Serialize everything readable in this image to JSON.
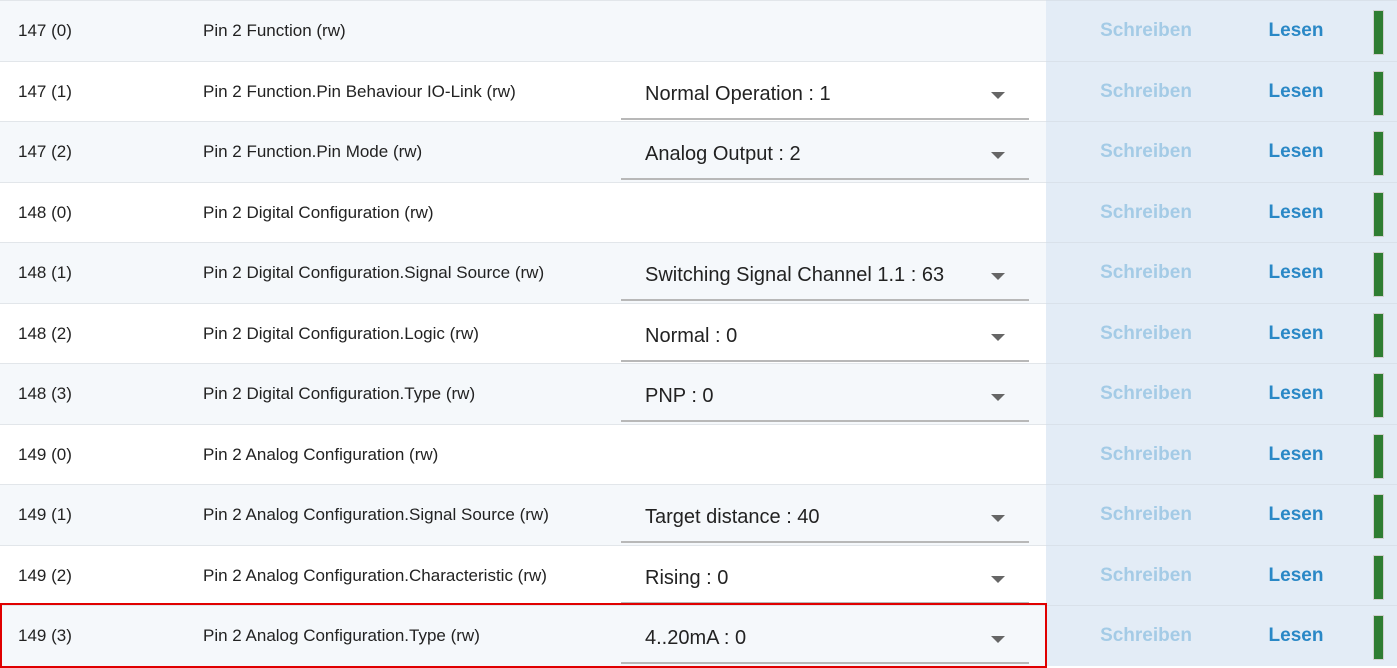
{
  "actions": {
    "write_label": "Schreiben",
    "read_label": "Lesen"
  },
  "status_color": "#2e7d32",
  "highlight_color": "#e00000",
  "rows": [
    {
      "id": "147 (0)",
      "name": "Pin 2 Function (rw)",
      "value": null
    },
    {
      "id": "147 (1)",
      "name": "Pin 2 Function.Pin Behaviour IO-Link (rw)",
      "value": "Normal Operation : 1"
    },
    {
      "id": "147 (2)",
      "name": "Pin 2 Function.Pin Mode (rw)",
      "value": "Analog Output : 2"
    },
    {
      "id": "148 (0)",
      "name": "Pin 2 Digital Configuration (rw)",
      "value": null
    },
    {
      "id": "148 (1)",
      "name": "Pin 2 Digital Configuration.Signal Source (rw)",
      "value": "Switching Signal Channel 1.1 : 63"
    },
    {
      "id": "148 (2)",
      "name": "Pin 2 Digital Configuration.Logic (rw)",
      "value": "Normal : 0"
    },
    {
      "id": "148 (3)",
      "name": "Pin 2 Digital Configuration.Type (rw)",
      "value": "PNP : 0"
    },
    {
      "id": "149 (0)",
      "name": "Pin 2 Analog Configuration (rw)",
      "value": null
    },
    {
      "id": "149 (1)",
      "name": "Pin 2 Analog Configuration.Signal Source (rw)",
      "value": "Target distance : 40"
    },
    {
      "id": "149 (2)",
      "name": "Pin 2 Analog Configuration.Characteristic (rw)",
      "value": "Rising : 0"
    },
    {
      "id": "149 (3)",
      "name": "Pin 2 Analog Configuration.Type (rw)",
      "value": "4..20mA : 0",
      "highlighted": true
    }
  ]
}
